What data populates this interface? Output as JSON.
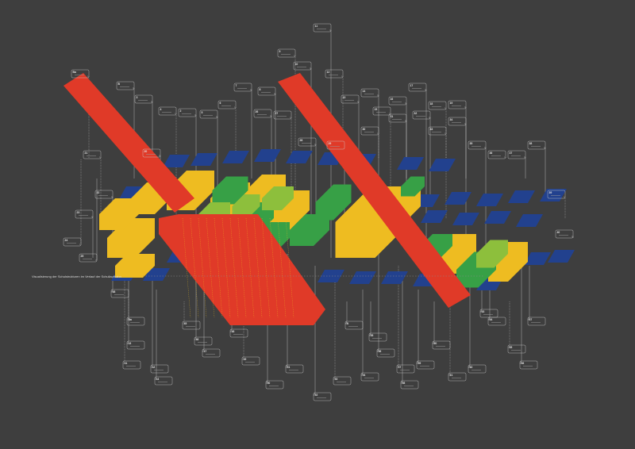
{
  "footer": {
    "caption": "Visualisierung der Schulstrukturen im Verlauf der Schullaufbahn"
  },
  "colors": {
    "background": "#3e3e3e",
    "red": "#e03a28",
    "yellow": "#eebc21",
    "blue": "#22418e",
    "green": "#37a046",
    "lightGreen": "#8dbf3c",
    "line": "#cfcfcf"
  },
  "labels": [
    "Ba",
    "B",
    "3",
    "4",
    "2",
    "5",
    "6",
    "7",
    "8",
    "9",
    "10",
    "11",
    "12",
    "13",
    "14",
    "15",
    "16",
    "17",
    "18",
    "19",
    "20",
    "21",
    "22",
    "23",
    "24",
    "25",
    "26",
    "27",
    "28",
    "29",
    "30",
    "31",
    "32",
    "33",
    "34",
    "35",
    "36",
    "37",
    "38",
    "39",
    "40",
    "41",
    "42",
    "43",
    "44",
    "45",
    "46",
    "47",
    "48",
    "49",
    "50",
    "51",
    "52",
    "53",
    "54",
    "55",
    "56",
    "57",
    "58",
    "59",
    "60",
    "61",
    "62",
    "63",
    "64",
    "65",
    "66",
    "67",
    "68"
  ]
}
